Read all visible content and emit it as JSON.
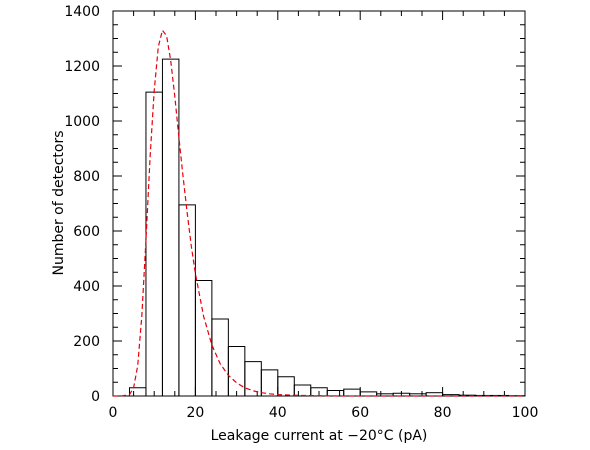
{
  "chart_data": {
    "type": "bar",
    "xlabel": "Leakage current at −20°C (pA)",
    "ylabel": "Number of detectors",
    "xlim": [
      0,
      100
    ],
    "ylim": [
      0,
      1400
    ],
    "x_ticks": [
      "0",
      "20",
      "40",
      "60",
      "80",
      "100"
    ],
    "y_ticks": [
      "0",
      "200",
      "400",
      "600",
      "800",
      "1000",
      "1200",
      "1400"
    ],
    "bin_width": 4,
    "bins": [
      {
        "x0": 4,
        "x1": 8,
        "value": 30
      },
      {
        "x0": 8,
        "x1": 12,
        "value": 1105
      },
      {
        "x0": 12,
        "x1": 16,
        "value": 1225
      },
      {
        "x0": 16,
        "x1": 20,
        "value": 695
      },
      {
        "x0": 20,
        "x1": 24,
        "value": 420
      },
      {
        "x0": 24,
        "x1": 28,
        "value": 280
      },
      {
        "x0": 28,
        "x1": 32,
        "value": 180
      },
      {
        "x0": 32,
        "x1": 36,
        "value": 125
      },
      {
        "x0": 36,
        "x1": 40,
        "value": 95
      },
      {
        "x0": 40,
        "x1": 44,
        "value": 70
      },
      {
        "x0": 44,
        "x1": 48,
        "value": 40
      },
      {
        "x0": 48,
        "x1": 52,
        "value": 30
      },
      {
        "x0": 52,
        "x1": 56,
        "value": 20
      },
      {
        "x0": 56,
        "x1": 60,
        "value": 25
      },
      {
        "x0": 60,
        "x1": 64,
        "value": 15
      },
      {
        "x0": 64,
        "x1": 68,
        "value": 8
      },
      {
        "x0": 68,
        "x1": 72,
        "value": 10
      },
      {
        "x0": 72,
        "x1": 76,
        "value": 8
      },
      {
        "x0": 76,
        "x1": 80,
        "value": 12
      },
      {
        "x0": 80,
        "x1": 84,
        "value": 5
      },
      {
        "x0": 84,
        "x1": 88,
        "value": 3
      },
      {
        "x0": 88,
        "x1": 92,
        "value": 2
      },
      {
        "x0": 92,
        "x1": 96,
        "value": 2
      },
      {
        "x0": 96,
        "x1": 100,
        "value": 1
      }
    ],
    "fit": {
      "style": "dashed",
      "color": "#e8000b",
      "x": [
        0,
        2,
        4,
        5,
        6,
        7,
        8,
        9,
        10,
        11,
        12,
        13,
        14,
        15,
        16,
        17,
        18,
        19,
        20,
        22,
        24,
        26,
        28,
        30,
        32,
        34,
        36,
        38,
        40,
        45,
        50,
        55,
        60,
        65,
        70,
        80,
        90,
        100
      ],
      "y": [
        0,
        0,
        5,
        30,
        110,
        290,
        570,
        870,
        1110,
        1270,
        1330,
        1310,
        1220,
        1090,
        940,
        800,
        665,
        545,
        445,
        290,
        185,
        118,
        75,
        48,
        30,
        19,
        12,
        8,
        5,
        2,
        1,
        0,
        0,
        0,
        0,
        0,
        0,
        0
      ]
    },
    "bar_color": "#000000",
    "grid": false,
    "legend": "none"
  }
}
